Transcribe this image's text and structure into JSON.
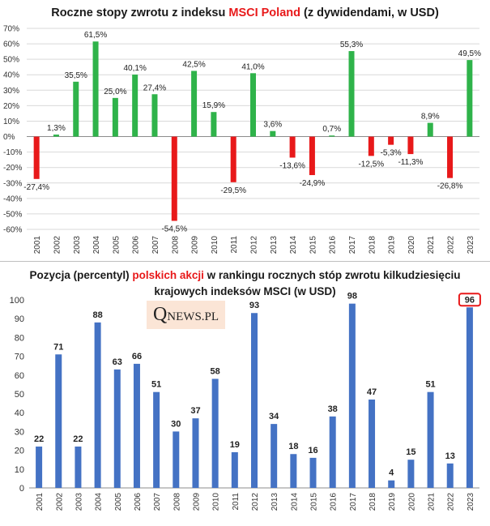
{
  "chart_data": [
    {
      "type": "bar",
      "title_parts": [
        "Roczne stopy zwrotu z indeksu ",
        "MSCI Poland",
        " (z dywidendami,  w USD)"
      ],
      "categories": [
        "2001",
        "2002",
        "2003",
        "2004",
        "2005",
        "2006",
        "2007",
        "2008",
        "2009",
        "2010",
        "2011",
        "2012",
        "2013",
        "2014",
        "2015",
        "2016",
        "2017",
        "2018",
        "2019",
        "2020",
        "2021",
        "2022",
        "2023"
      ],
      "values": [
        -27.4,
        1.3,
        35.5,
        61.5,
        25.0,
        40.1,
        27.4,
        -54.5,
        42.5,
        15.9,
        -29.5,
        41.0,
        3.6,
        -13.6,
        -24.9,
        0.7,
        55.3,
        -12.5,
        -5.3,
        -11.3,
        8.9,
        -26.8,
        49.5
      ],
      "labels": [
        "-27,4%",
        "1,3%",
        "35,5%",
        "61,5%",
        "25,0%",
        "40,1%",
        "27,4%",
        "-54,5%",
        "42,5%",
        "15,9%",
        "-29,5%",
        "41,0%",
        "3,6%",
        "-13,6%",
        "-24,9%",
        "0,7%",
        "55,3%",
        "-12,5%",
        "-5,3%",
        "-11,3%",
        "8,9%",
        "-26,8%",
        "49,5%"
      ],
      "ylim": [
        -60,
        70
      ],
      "yticks": [
        70,
        60,
        50,
        40,
        30,
        20,
        10,
        0,
        -10,
        -20,
        -30,
        -40,
        -50,
        -60
      ],
      "ytick_labels": [
        "70%",
        "60%",
        "50%",
        "40%",
        "30%",
        "20%",
        "10%",
        "0%",
        "-10%",
        "-20%",
        "-30%",
        "-40%",
        "-50%",
        "-60%"
      ],
      "colors": {
        "positive": "#2fb34a",
        "negative": "#e8191a"
      }
    },
    {
      "type": "bar",
      "title_parts": [
        "Pozycja (percentyl) ",
        "polskich akcji",
        " w rankingu rocznych stóp zwrotu kilkudziesięciu",
        "krajowych indeksów MSCI (w USD)"
      ],
      "categories": [
        "2001",
        "2002",
        "2003",
        "2004",
        "2005",
        "2006",
        "2007",
        "2008",
        "2009",
        "2010",
        "2011",
        "2012",
        "2013",
        "2014",
        "2015",
        "2016",
        "2017",
        "2018",
        "2019",
        "2020",
        "2021",
        "2022",
        "2023"
      ],
      "values": [
        22,
        71,
        22,
        88,
        63,
        66,
        51,
        30,
        37,
        58,
        19,
        93,
        34,
        18,
        16,
        38,
        98,
        47,
        4,
        15,
        51,
        13,
        96
      ],
      "labels": [
        "22",
        "71",
        "22",
        "88",
        "63",
        "66",
        "51",
        "30",
        "37",
        "58",
        "19",
        "93",
        "34",
        "18",
        "16",
        "38",
        "98",
        "47",
        "4",
        "15",
        "51",
        "13",
        "96"
      ],
      "highlight_index": 22,
      "ylim": [
        0,
        100
      ],
      "yticks": [
        100,
        90,
        80,
        70,
        60,
        50,
        40,
        30,
        20,
        10,
        0
      ],
      "ytick_labels": [
        "100",
        "90",
        "80",
        "70",
        "60",
        "50",
        "40",
        "30",
        "20",
        "10",
        "0"
      ],
      "colors": {
        "bar": "#4472c4",
        "highlight_border": "#e8191a"
      }
    }
  ],
  "logo": {
    "initial": "Q",
    "rest": "NEWS.PL"
  }
}
